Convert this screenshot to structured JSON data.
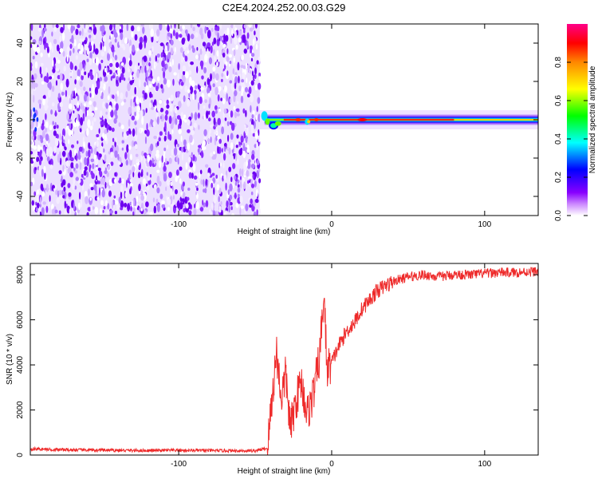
{
  "title": "C2E4.2024.252.00.03.G29",
  "chart_data": [
    {
      "type": "heatmap",
      "title": "C2E4.2024.252.00.03.G29",
      "xlabel": "Height of straight line (km)",
      "ylabel": "Frequency (Hz)",
      "xlim": [
        -197,
        135
      ],
      "ylim": [
        -50,
        50
      ],
      "x_ticks": [
        -100,
        0,
        100
      ],
      "y_ticks": [
        -40,
        -20,
        0,
        20,
        40
      ],
      "colorbar": {
        "label": "Normalized spectral amplitude",
        "range": [
          0,
          1
        ],
        "ticks": [
          "0.0",
          "0.2",
          "0.4",
          "0.6",
          "0.8"
        ],
        "colors": [
          "#ffffff",
          "#8800ff",
          "#0000ff",
          "#00ffff",
          "#00ff00",
          "#ffff00",
          "#ff8800",
          "#ff0000",
          "#ff00aa"
        ]
      },
      "regions": [
        {
          "x_range": [
            -197,
            -47
          ],
          "description": "broadband noise",
          "amplitude": 0.1
        },
        {
          "x_range": [
            -47,
            135
          ],
          "center_frequency_hz": 0,
          "peak_amplitude": 0.85
        }
      ],
      "grid": false
    },
    {
      "type": "line",
      "xlabel": "Height of straight line (km)",
      "ylabel": "SNR (10 * v/v)",
      "xlim": [
        -197,
        135
      ],
      "ylim": [
        0,
        8500
      ],
      "x_ticks": [
        -100,
        0,
        100
      ],
      "y_ticks": [
        0,
        2000,
        4000,
        6000,
        8000
      ],
      "color": "#ee2a2a",
      "series": [
        {
          "x": [
            -197,
            -180,
            -160,
            -140,
            -120,
            -100,
            -80,
            -60,
            -50,
            -42,
            -36,
            -33,
            -30,
            -27,
            -24,
            -20,
            -16,
            -12,
            -8,
            -5,
            -3,
            0,
            5,
            10,
            15,
            20,
            25,
            30,
            40,
            50,
            60,
            70,
            80,
            90,
            100,
            110,
            120,
            135
          ],
          "y": [
            280,
            240,
            220,
            210,
            200,
            210,
            200,
            190,
            190,
            300,
            4600,
            2500,
            3600,
            1100,
            2200,
            3300,
            1800,
            2700,
            4300,
            7100,
            3800,
            4100,
            4900,
            5500,
            5900,
            6500,
            6900,
            7300,
            7700,
            7900,
            8000,
            7900,
            8000,
            8000,
            8050,
            8100,
            8100,
            8150
          ]
        }
      ],
      "grid": false
    }
  ]
}
